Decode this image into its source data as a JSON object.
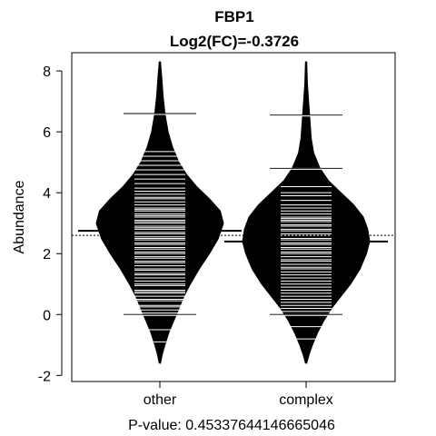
{
  "chart_data": {
    "type": "beanplot",
    "title": "FBP1",
    "subtitle": "Log2(FC)=-0.3726",
    "ylabel": "Abundance",
    "footer": "P-value: 0.45337644146665046",
    "ylim": [
      -2.2,
      8.6
    ],
    "yticks": [
      -2,
      0,
      2,
      4,
      6,
      8
    ],
    "overall_mean": 2.6,
    "categories": [
      "other",
      "complex"
    ],
    "beans": [
      {
        "name": "other",
        "mean": 2.75,
        "whisker_ticks": [
          0.0,
          6.6
        ],
        "density_profile": [
          [
            -1.6,
            0.01
          ],
          [
            -1.3,
            0.04
          ],
          [
            -1.0,
            0.08
          ],
          [
            -0.6,
            0.14
          ],
          [
            -0.2,
            0.22
          ],
          [
            0.2,
            0.3
          ],
          [
            0.6,
            0.38
          ],
          [
            1.0,
            0.48
          ],
          [
            1.5,
            0.62
          ],
          [
            2.0,
            0.78
          ],
          [
            2.5,
            0.92
          ],
          [
            3.0,
            1.0
          ],
          [
            3.4,
            0.95
          ],
          [
            3.8,
            0.78
          ],
          [
            4.2,
            0.58
          ],
          [
            4.6,
            0.42
          ],
          [
            5.0,
            0.3
          ],
          [
            5.5,
            0.2
          ],
          [
            6.0,
            0.13
          ],
          [
            6.6,
            0.08
          ],
          [
            7.2,
            0.05
          ],
          [
            7.8,
            0.03
          ],
          [
            8.3,
            0.01
          ]
        ],
        "observations": [
          -0.9,
          -0.5,
          0.0,
          0.05,
          0.15,
          0.25,
          0.3,
          0.45,
          0.5,
          0.6,
          0.7,
          0.75,
          0.8,
          0.95,
          1.0,
          1.1,
          1.2,
          1.3,
          1.35,
          1.45,
          1.5,
          1.6,
          1.7,
          1.75,
          1.85,
          1.9,
          2.0,
          2.05,
          2.15,
          2.2,
          2.3,
          2.35,
          2.45,
          2.5,
          2.55,
          2.65,
          2.7,
          2.8,
          2.85,
          2.9,
          3.0,
          3.05,
          3.1,
          3.2,
          3.25,
          3.3,
          3.4,
          3.45,
          3.5,
          3.6,
          3.7,
          3.8,
          3.85,
          3.95,
          4.05,
          4.15,
          4.3,
          4.45,
          4.6,
          4.75,
          4.9,
          5.05,
          5.2,
          5.35,
          6.6
        ]
      },
      {
        "name": "complex",
        "mean": 2.4,
        "whisker_ticks": [
          0.0,
          4.8,
          6.55
        ],
        "density_profile": [
          [
            -1.6,
            0.01
          ],
          [
            -1.3,
            0.05
          ],
          [
            -1.0,
            0.1
          ],
          [
            -0.6,
            0.18
          ],
          [
            -0.2,
            0.28
          ],
          [
            0.2,
            0.4
          ],
          [
            0.6,
            0.55
          ],
          [
            1.0,
            0.7
          ],
          [
            1.5,
            0.85
          ],
          [
            2.0,
            0.95
          ],
          [
            2.4,
            1.0
          ],
          [
            2.8,
            0.97
          ],
          [
            3.2,
            0.9
          ],
          [
            3.6,
            0.75
          ],
          [
            4.0,
            0.55
          ],
          [
            4.4,
            0.35
          ],
          [
            4.8,
            0.22
          ],
          [
            5.3,
            0.12
          ],
          [
            5.8,
            0.08
          ],
          [
            6.4,
            0.06
          ],
          [
            7.0,
            0.04
          ],
          [
            7.6,
            0.02
          ],
          [
            8.3,
            0.01
          ]
        ],
        "observations": [
          -0.8,
          -0.4,
          0.0,
          0.1,
          0.2,
          0.3,
          0.4,
          0.5,
          0.6,
          0.7,
          0.8,
          0.9,
          1.0,
          1.1,
          1.2,
          1.3,
          1.4,
          1.5,
          1.55,
          1.65,
          1.75,
          1.8,
          1.9,
          2.0,
          2.05,
          2.15,
          2.2,
          2.3,
          2.35,
          2.45,
          2.5,
          2.6,
          2.65,
          2.75,
          2.8,
          2.9,
          2.95,
          3.05,
          3.1,
          3.15,
          3.2,
          3.3,
          3.4,
          3.5,
          3.6,
          3.75,
          3.9,
          4.0,
          4.2,
          4.8,
          6.55
        ]
      }
    ]
  }
}
